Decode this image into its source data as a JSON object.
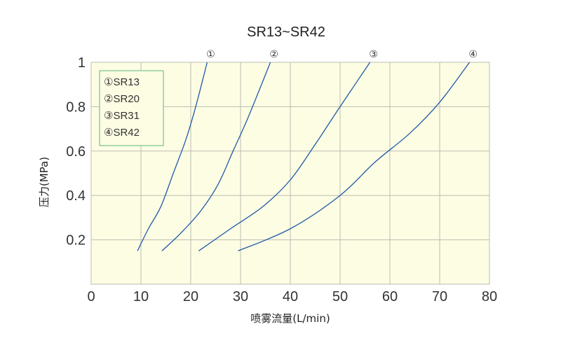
{
  "colors": {
    "plot_background": "#fdfde4",
    "grid": "#bdbdb2",
    "line": "#1f5aa8",
    "legend_border": "#5fb57f",
    "legend_background": "#fdfde4"
  },
  "chart_data": {
    "type": "line",
    "title": "SR13~SR42",
    "xlabel": "喷雾流量(L/min)",
    "ylabel": "压力(MPa)",
    "xlim": [
      0,
      80
    ],
    "ylim": [
      0,
      1
    ],
    "x_ticks": [
      "0",
      "10",
      "20",
      "30",
      "40",
      "50",
      "60",
      "70",
      "80"
    ],
    "y_ticks": [
      "0.2",
      "0.4",
      "0.6",
      "0.8",
      "1"
    ],
    "grid": true,
    "legend_position": "top-left",
    "series": [
      {
        "name": "①SR13",
        "marker": "①",
        "points": [
          [
            9.3,
            0.15
          ],
          [
            11.5,
            0.25
          ],
          [
            14,
            0.35
          ],
          [
            16.5,
            0.5
          ],
          [
            19,
            0.65
          ],
          [
            21,
            0.8
          ],
          [
            23.3,
            1.0
          ]
        ]
      },
      {
        "name": "②SR20",
        "marker": "②",
        "points": [
          [
            14.2,
            0.15
          ],
          [
            18,
            0.23
          ],
          [
            22,
            0.33
          ],
          [
            25.5,
            0.45
          ],
          [
            28.5,
            0.6
          ],
          [
            31.5,
            0.75
          ],
          [
            36,
            1.0
          ]
        ]
      },
      {
        "name": "③SR31",
        "marker": "③",
        "points": [
          [
            21.6,
            0.15
          ],
          [
            28,
            0.25
          ],
          [
            34.5,
            0.35
          ],
          [
            40,
            0.47
          ],
          [
            45,
            0.63
          ],
          [
            50,
            0.8
          ],
          [
            56,
            1.0
          ]
        ]
      },
      {
        "name": "④SR42",
        "marker": "④",
        "points": [
          [
            29.5,
            0.15
          ],
          [
            40,
            0.25
          ],
          [
            50,
            0.4
          ],
          [
            57,
            0.55
          ],
          [
            64,
            0.68
          ],
          [
            70,
            0.82
          ],
          [
            76,
            1.0
          ]
        ]
      }
    ]
  }
}
